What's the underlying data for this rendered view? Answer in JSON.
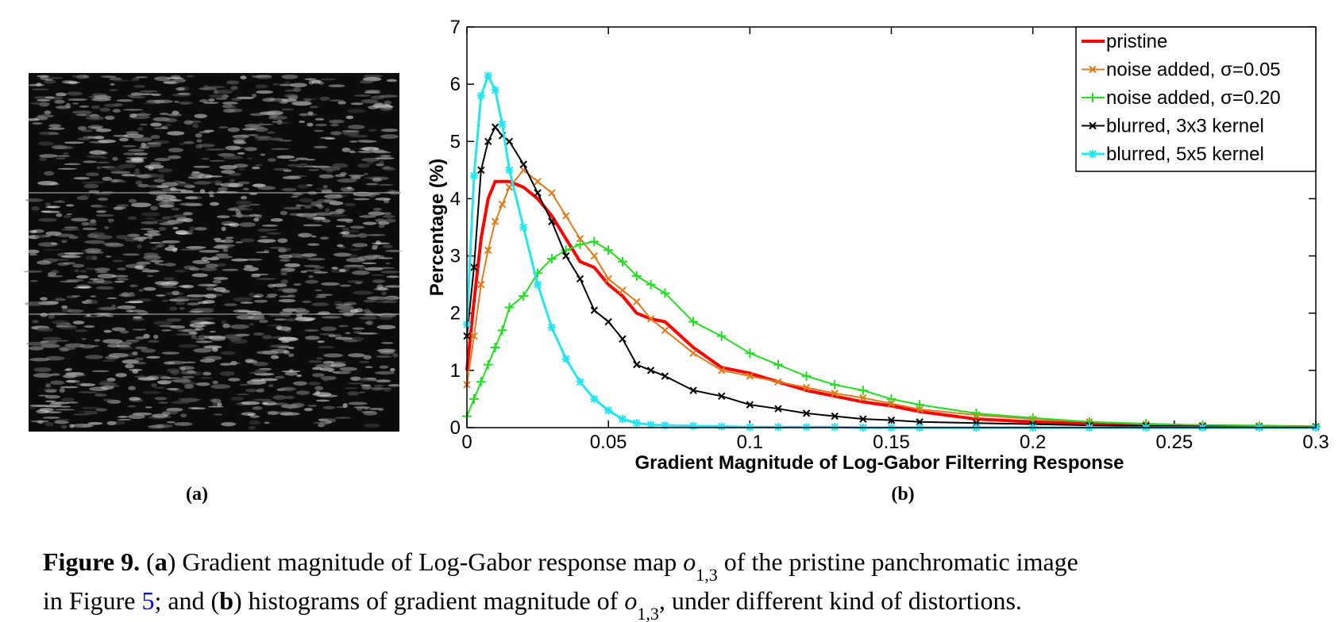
{
  "chart_data": {
    "type": "line",
    "xlabel": "Gradient Magnitude of Log-Gabor Filterring Response",
    "ylabel": "Percentage (%)",
    "x": [
      0,
      0.0025,
      0.005,
      0.0075,
      0.01,
      0.0125,
      0.015,
      0.02,
      0.025,
      0.03,
      0.035,
      0.04,
      0.045,
      0.05,
      0.055,
      0.06,
      0.065,
      0.07,
      0.08,
      0.09,
      0.1,
      0.11,
      0.12,
      0.13,
      0.14,
      0.15,
      0.16,
      0.18,
      0.2,
      0.22,
      0.24,
      0.26,
      0.28,
      0.3
    ],
    "series": [
      {
        "name": "pristine",
        "color": "#ff0000",
        "width": 4,
        "values": [
          1.0,
          2.2,
          3.3,
          4.0,
          4.3,
          4.3,
          4.3,
          4.2,
          4.0,
          3.7,
          3.3,
          2.9,
          2.8,
          2.5,
          2.3,
          2.0,
          1.9,
          1.85,
          1.4,
          1.05,
          0.95,
          0.8,
          0.65,
          0.55,
          0.45,
          0.38,
          0.28,
          0.15,
          0.1,
          0.07,
          0.05,
          0.03,
          0.02,
          0.01
        ]
      },
      {
        "name": "noise added, σ=0.05",
        "color": "#e07b1a",
        "marker": "x",
        "width": 2,
        "values": [
          0.75,
          1.6,
          2.5,
          3.1,
          3.6,
          3.9,
          4.2,
          4.5,
          4.3,
          4.1,
          3.7,
          3.3,
          3.0,
          2.6,
          2.4,
          2.2,
          1.9,
          1.7,
          1.3,
          1.0,
          0.9,
          0.8,
          0.7,
          0.6,
          0.52,
          0.42,
          0.32,
          0.22,
          0.15,
          0.1,
          0.06,
          0.04,
          0.03,
          0.02
        ]
      },
      {
        "name": "noise added, σ=0.20",
        "color": "#22dd22",
        "marker": "+",
        "width": 2,
        "values": [
          0.2,
          0.5,
          0.8,
          1.1,
          1.4,
          1.7,
          2.1,
          2.3,
          2.7,
          2.95,
          3.1,
          3.2,
          3.25,
          3.1,
          2.9,
          2.65,
          2.5,
          2.35,
          1.85,
          1.6,
          1.3,
          1.1,
          0.9,
          0.75,
          0.65,
          0.5,
          0.4,
          0.25,
          0.17,
          0.1,
          0.07,
          0.04,
          0.03,
          0.02
        ]
      },
      {
        "name": "blurred, 3x3 kernel",
        "color": "#000000",
        "marker": "x",
        "width": 2,
        "values": [
          1.6,
          2.8,
          4.5,
          5.0,
          5.25,
          5.1,
          5.0,
          4.6,
          4.1,
          3.6,
          3.0,
          2.6,
          2.05,
          1.85,
          1.55,
          1.1,
          1.0,
          0.9,
          0.65,
          0.55,
          0.4,
          0.33,
          0.25,
          0.2,
          0.15,
          0.13,
          0.1,
          0.08,
          0.06,
          0.04,
          0.03,
          0.02,
          0.01,
          0.01
        ]
      },
      {
        "name": "blurred, 5x5 kernel",
        "color": "#22e6f0",
        "marker": "*",
        "width": 3,
        "values": [
          1.8,
          4.4,
          5.8,
          6.15,
          5.9,
          5.3,
          4.5,
          3.5,
          2.5,
          1.75,
          1.2,
          0.8,
          0.5,
          0.3,
          0.15,
          0.08,
          0.05,
          0.04,
          0.03,
          0.02,
          0.01,
          0.01,
          0.01,
          0.01,
          0,
          0,
          0,
          0,
          0,
          0,
          0,
          0,
          0,
          0
        ]
      }
    ],
    "xlim": [
      0,
      0.3
    ],
    "xticks": [
      0,
      0.05,
      0.1,
      0.15,
      0.2,
      0.25,
      0.3
    ],
    "ylim": [
      0,
      7
    ],
    "yticks": [
      0,
      1,
      2,
      3,
      4,
      5,
      6,
      7
    ],
    "grid": false,
    "legend": "upper right"
  },
  "panel_labels": [
    "(a)",
    "(b)"
  ],
  "caption": {
    "line1": [
      "Figure 9.",
      " (",
      "a",
      ") Gradient magnitude of Log-Gabor response map ",
      "o",
      "1,3",
      " of the pristine panchromatic image"
    ],
    "line2": [
      "in Figure ",
      "5",
      "; and (",
      "b",
      ") histograms of gradient magnitude of ",
      "o",
      "1,3",
      ", under different kind of distortions."
    ]
  }
}
